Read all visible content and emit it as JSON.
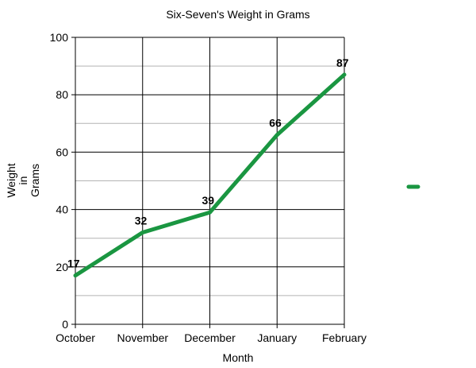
{
  "chart_data": {
    "type": "line",
    "title": "Six-Seven's Weight in Grams",
    "xlabel": "Month",
    "ylabel_lines": [
      "Weight",
      "in",
      "Grams"
    ],
    "categories": [
      "October",
      "November",
      "December",
      "January",
      "February"
    ],
    "series": [
      {
        "values": [
          17,
          32,
          39,
          66,
          87
        ]
      }
    ],
    "ylim": [
      0,
      100
    ],
    "y_ticks": [
      0,
      20,
      40,
      60,
      80,
      100
    ],
    "y_major_step": 20,
    "y_minor_step": 10,
    "grid": true,
    "data_labels": true,
    "legend": "right",
    "colors": {
      "line": "#1a9641",
      "grid_major": "#000000",
      "grid_minor": "#b3b3b3"
    }
  }
}
